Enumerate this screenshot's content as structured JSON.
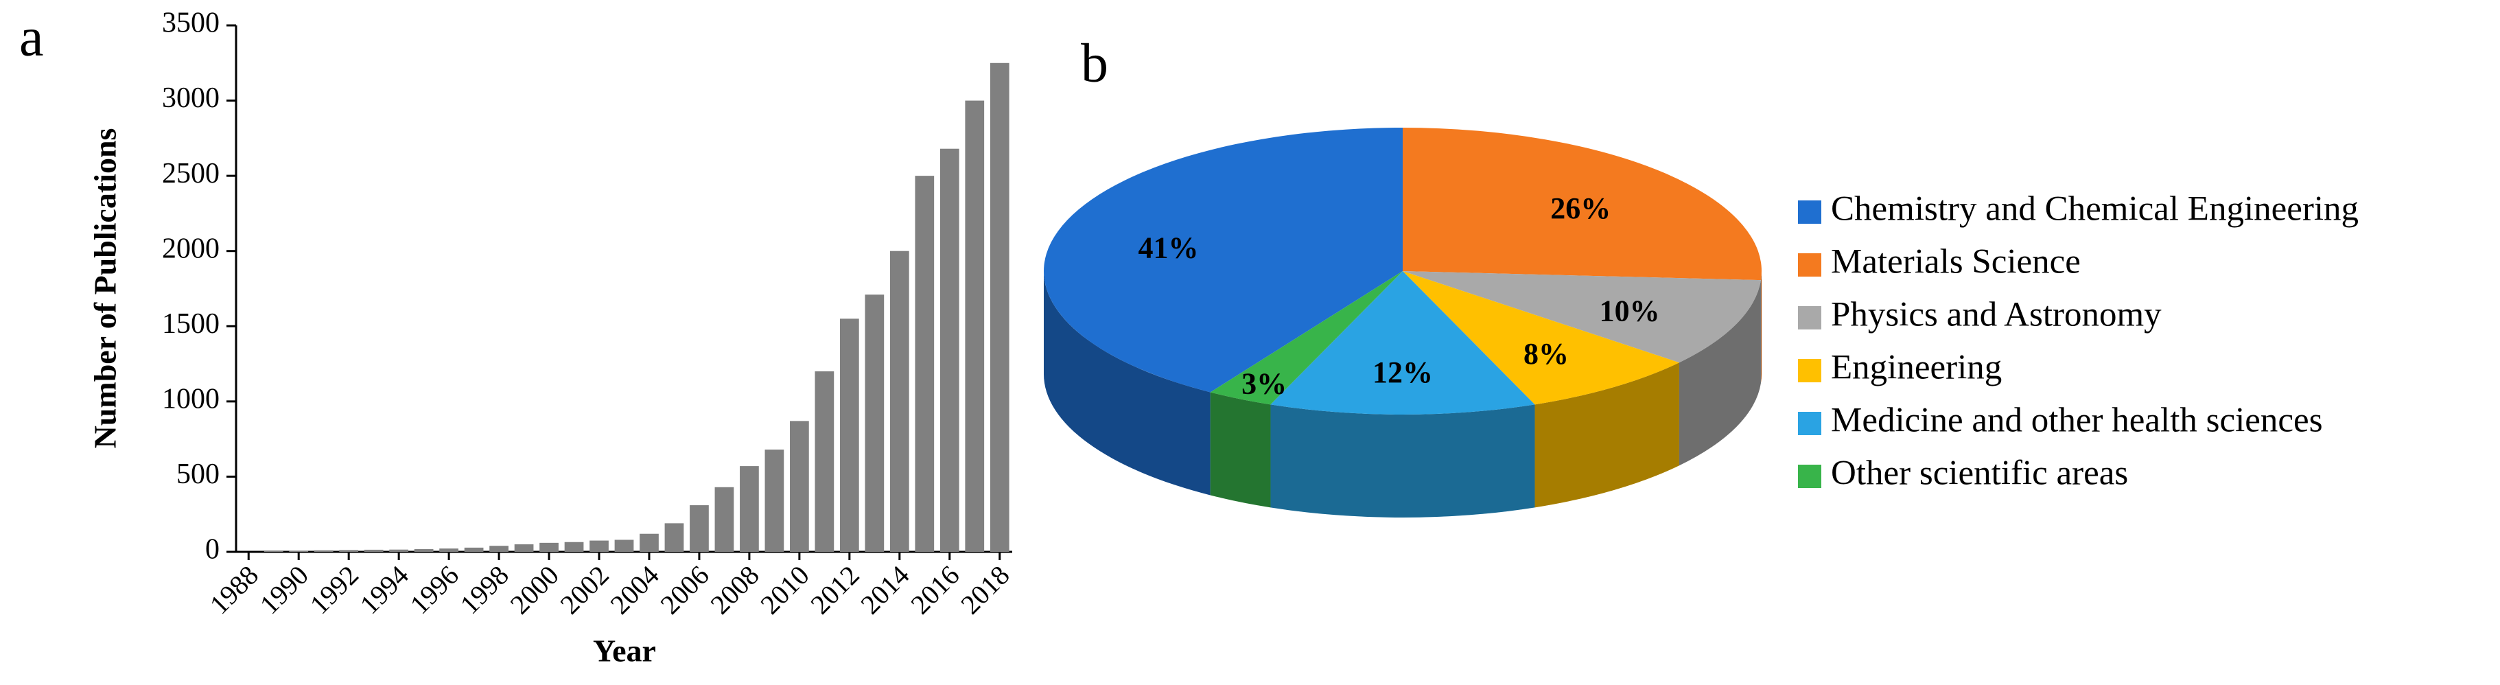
{
  "chart_data": [
    {
      "type": "bar",
      "label": "a",
      "x_label": "Year",
      "y_label": "Number of Publications",
      "categories": [
        "1988",
        null,
        "1990",
        null,
        "1992",
        null,
        "1994",
        null,
        "1996",
        null,
        "1998",
        null,
        "2000",
        null,
        "2002",
        null,
        "2004",
        null,
        "2006",
        null,
        "2008",
        null,
        "2010",
        null,
        "2012",
        null,
        "2014",
        null,
        "2016",
        null,
        "2018"
      ],
      "values": [
        0,
        5,
        8,
        10,
        12,
        14,
        15,
        18,
        22,
        28,
        40,
        50,
        60,
        65,
        75,
        80,
        120,
        190,
        310,
        430,
        570,
        680,
        870,
        1200,
        1550,
        1710,
        2000,
        2500,
        2680,
        3000,
        3250
      ],
      "color": "#808080",
      "ylim": [
        0,
        3500
      ],
      "yticks": [
        0,
        500,
        1000,
        1500,
        2000,
        2500,
        3000,
        3500
      ]
    },
    {
      "type": "pie",
      "label": "b",
      "3d": true,
      "legend": "right",
      "categories": [
        "Chemistry and Chemical Engineering",
        "Materials Science",
        "Physics and Astronomy",
        "Engineering",
        "Medicine and other health sciences",
        "Other scientific areas"
      ],
      "values": [
        41,
        26,
        10,
        8,
        12,
        3
      ],
      "value_labels": [
        "41%",
        "26%",
        "10%",
        "8%",
        "12%",
        "3%"
      ],
      "colors": [
        "#1f6fd0",
        "#f47a1f",
        "#a9a9a9",
        "#ffc000",
        "#2aa3e3",
        "#38b44a"
      ]
    }
  ]
}
